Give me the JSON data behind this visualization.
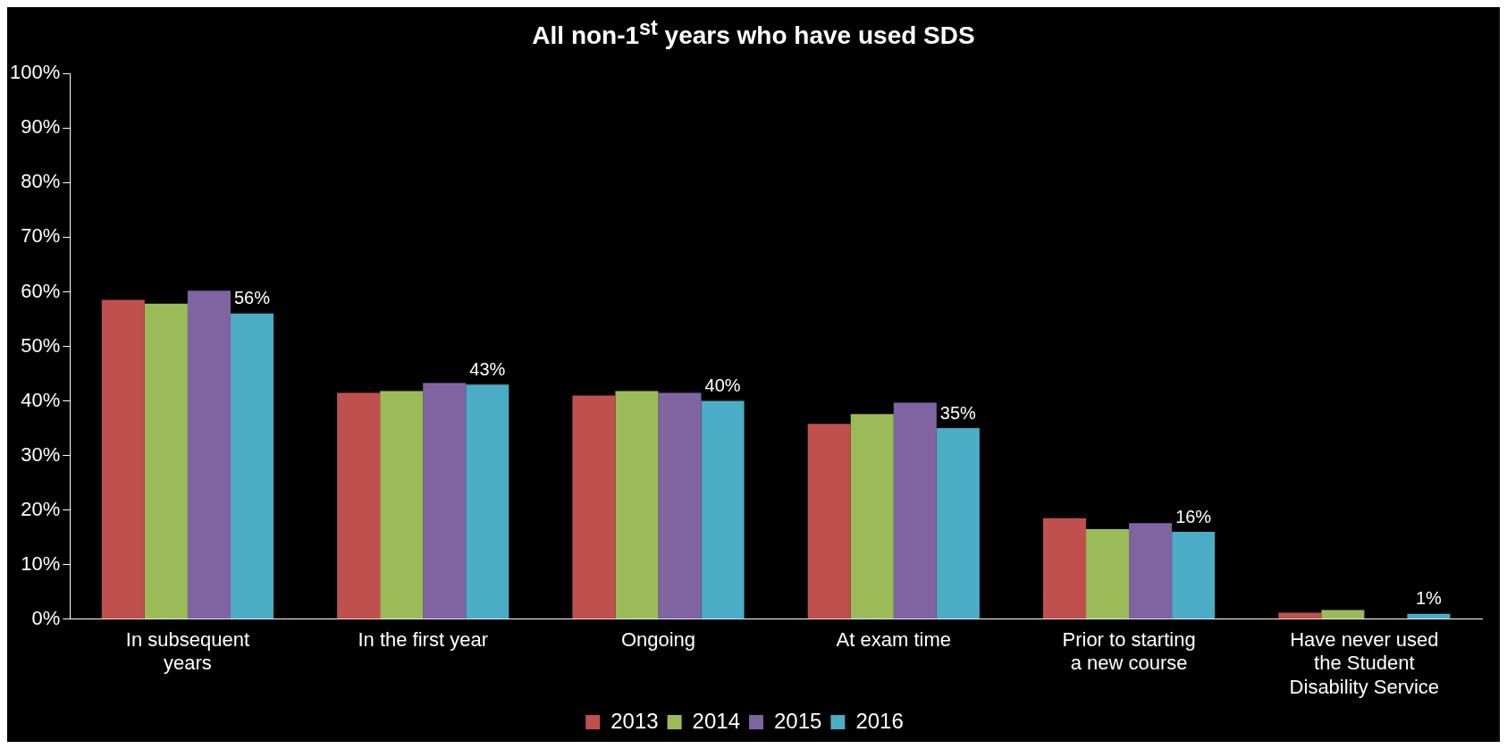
{
  "chart_data": {
    "type": "bar",
    "title": "All non-1$^{st}$  years who have used SDS",
    "categories": [
      "In subsequent years",
      "In the first year",
      "Ongoing",
      "At exam time",
      "Prior to starting a new course",
      "Have never used the Student Disability Service"
    ],
    "series": [
      {
        "name": "2013",
        "color": "#c0504d",
        "values": [
          58.5,
          41.5,
          41,
          35.8,
          18.5,
          1.2
        ]
      },
      {
        "name": "2014",
        "color": "#9bbb59",
        "values": [
          57.8,
          41.8,
          41.8,
          37.6,
          16.5,
          1.7
        ]
      },
      {
        "name": "2015",
        "color": "#8064a2",
        "values": [
          60.2,
          43.3,
          41.5,
          39.7,
          17.6,
          0
        ]
      },
      {
        "name": "2016",
        "color": "#4bacc6",
        "values": [
          56,
          43,
          40,
          35,
          16,
          1
        ],
        "value_labels": [
          "56%",
          "43%",
          "40%",
          "35%",
          "16%",
          "1%"
        ]
      }
    ],
    "ylim": [
      0,
      100
    ],
    "yticks": [
      {
        "value": 0,
        "label": "0%"
      },
      {
        "value": 10,
        "label": "10%"
      },
      {
        "value": 20,
        "label": "20%"
      },
      {
        "value": 30,
        "label": "30%"
      },
      {
        "value": 40,
        "label": "40%"
      },
      {
        "value": 50,
        "label": "50%"
      },
      {
        "value": 60,
        "label": "60%"
      },
      {
        "value": 70,
        "label": "70%"
      },
      {
        "value": 80,
        "label": "80%"
      },
      {
        "value": 90,
        "label": "90%"
      },
      {
        "value": 100,
        "label": "100%"
      }
    ],
    "grid": false,
    "legend": "bottom"
  }
}
